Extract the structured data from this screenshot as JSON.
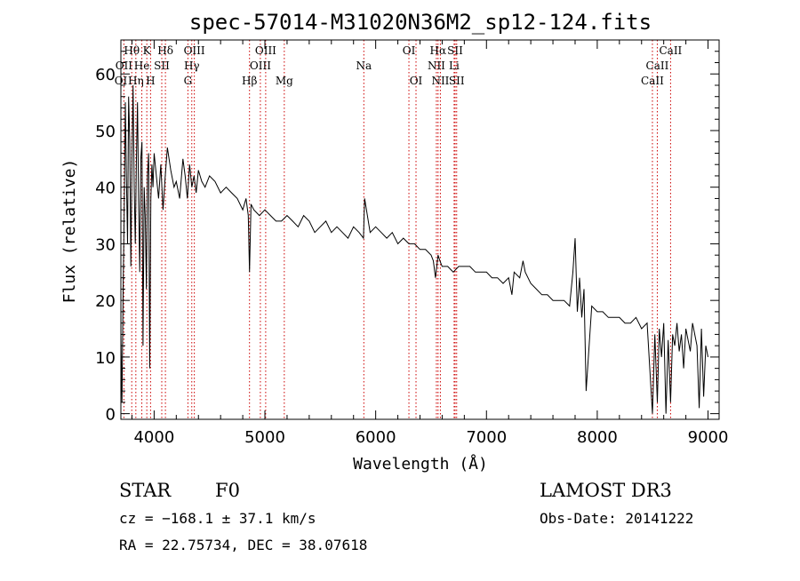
{
  "chart_data": {
    "type": "line",
    "title": "spec-57014-M31020N36M2_sp12-124.fits",
    "xlabel": "Wavelength (Å)",
    "ylabel": "Flux (relative)",
    "xlim": [
      3700,
      9100
    ],
    "ylim": [
      -1,
      66
    ],
    "x_ticks": [
      4000,
      5000,
      6000,
      7000,
      8000,
      9000
    ],
    "y_ticks": [
      0,
      10,
      20,
      30,
      40,
      50,
      60
    ],
    "series": [
      {
        "x": [
          3700,
          3710,
          3720,
          3730,
          3740,
          3750,
          3760,
          3770,
          3780,
          3790,
          3800,
          3810,
          3820,
          3830,
          3840,
          3850,
          3860,
          3870,
          3880,
          3890,
          3900,
          3910,
          3920,
          3930,
          3940,
          3950,
          3960,
          3970,
          3980,
          3990,
          4000,
          4020,
          4040,
          4060,
          4080,
          4100,
          4120,
          4150,
          4180,
          4200,
          4230,
          4260,
          4280,
          4300,
          4320,
          4340,
          4360,
          4380,
          4400,
          4430,
          4460,
          4500,
          4550,
          4600,
          4650,
          4700,
          4750,
          4800,
          4830,
          4850,
          4861,
          4875,
          4900,
          4950,
          5000,
          5050,
          5100,
          5150,
          5200,
          5250,
          5300,
          5350,
          5400,
          5450,
          5500,
          5550,
          5600,
          5650,
          5700,
          5750,
          5800,
          5850,
          5890,
          5900,
          5950,
          6000,
          6050,
          6100,
          6150,
          6200,
          6250,
          6300,
          6350,
          6400,
          6450,
          6500,
          6520,
          6540,
          6563,
          6580,
          6600,
          6650,
          6700,
          6750,
          6800,
          6850,
          6900,
          6950,
          7000,
          7050,
          7100,
          7150,
          7200,
          7230,
          7250,
          7300,
          7330,
          7350,
          7400,
          7450,
          7500,
          7550,
          7600,
          7650,
          7700,
          7750,
          7780,
          7800,
          7820,
          7840,
          7860,
          7880,
          7900,
          7950,
          8000,
          8050,
          8100,
          8150,
          8200,
          8250,
          8300,
          8350,
          8400,
          8450,
          8498,
          8520,
          8542,
          8560,
          8580,
          8600,
          8620,
          8640,
          8662,
          8680,
          8700,
          8720,
          8740,
          8760,
          8780,
          8800,
          8820,
          8840,
          8860,
          8880,
          8900,
          8920,
          8940,
          8960,
          8980,
          9000
        ],
        "y": [
          14,
          2,
          22,
          35,
          55,
          42,
          30,
          56,
          48,
          26,
          45,
          58,
          40,
          30,
          44,
          55,
          38,
          25,
          45,
          48,
          12,
          40,
          35,
          22,
          42,
          46,
          8,
          38,
          44,
          40,
          46,
          42,
          38,
          44,
          36,
          42,
          47,
          43,
          40,
          41,
          38,
          45,
          42,
          38,
          44,
          40,
          42,
          39,
          43,
          41,
          40,
          42,
          41,
          39,
          40,
          39,
          38,
          36,
          38,
          35,
          25,
          37,
          36,
          35,
          36,
          35,
          34,
          34,
          35,
          34,
          33,
          35,
          34,
          32,
          33,
          34,
          32,
          33,
          32,
          31,
          33,
          32,
          31,
          38,
          32,
          33,
          32,
          31,
          32,
          30,
          31,
          30,
          30,
          29,
          29,
          28,
          27,
          24,
          28,
          27,
          26,
          26,
          25,
          26,
          26,
          26,
          25,
          25,
          25,
          24,
          24,
          23,
          24,
          21,
          25,
          24,
          27,
          25,
          23,
          22,
          21,
          21,
          20,
          20,
          20,
          19,
          25,
          31,
          18,
          24,
          17,
          22,
          4,
          19,
          18,
          18,
          17,
          17,
          17,
          16,
          16,
          17,
          15,
          16,
          0,
          14,
          2,
          15,
          10,
          16,
          0,
          13,
          2,
          14,
          12,
          16,
          11,
          14,
          8,
          15,
          13,
          11,
          16,
          14,
          12,
          1,
          15,
          3,
          12,
          10
        ]
      }
    ],
    "lines": [
      {
        "label": "Hθ",
        "wl": 3798,
        "row": 0
      },
      {
        "label": "K",
        "wl": 3934,
        "row": 0
      },
      {
        "label": "Hδ",
        "wl": 4102,
        "row": 0
      },
      {
        "label": "OIII",
        "wl": 4363,
        "row": 0
      },
      {
        "label": "OIII",
        "wl": 5007,
        "row": 0
      },
      {
        "label": "OI",
        "wl": 6300,
        "row": 0
      },
      {
        "label": "Hα",
        "wl": 6563,
        "row": 0
      },
      {
        "label": "SII",
        "wl": 6717,
        "row": 0
      },
      {
        "label": "CaII",
        "wl": 8662,
        "row": 0
      },
      {
        "label": "OII",
        "wl": 3727,
        "row": 1
      },
      {
        "label": "He",
        "wl": 3889,
        "row": 1
      },
      {
        "label": "SII",
        "wl": 4069,
        "row": 1
      },
      {
        "label": "Hγ",
        "wl": 4340,
        "row": 1
      },
      {
        "label": "OIII",
        "wl": 4959,
        "row": 1
      },
      {
        "label": "Na",
        "wl": 5893,
        "row": 1
      },
      {
        "label": "NII",
        "wl": 6548,
        "row": 1
      },
      {
        "label": "Li",
        "wl": 6708,
        "row": 1
      },
      {
        "label": "CaII",
        "wl": 8542,
        "row": 1
      },
      {
        "label": "OI",
        "wl": 3700,
        "row": 2
      },
      {
        "label": "Hη",
        "wl": 3835,
        "row": 2
      },
      {
        "label": "H",
        "wl": 3968,
        "row": 2
      },
      {
        "label": "G",
        "wl": 4305,
        "row": 2
      },
      {
        "label": "Hβ",
        "wl": 4861,
        "row": 2
      },
      {
        "label": "Mg",
        "wl": 5175,
        "row": 2
      },
      {
        "label": "OI",
        "wl": 6364,
        "row": 2
      },
      {
        "label": "NII",
        "wl": 6584,
        "row": 2
      },
      {
        "label": "SII",
        "wl": 6731,
        "row": 2
      },
      {
        "label": "CaII",
        "wl": 8498,
        "row": 2
      }
    ],
    "grid": false,
    "line_color": "#000000",
    "marker_color": "#cc0000"
  },
  "info": {
    "class": "STAR",
    "subclass": "F0",
    "cz": "cz = −168.1 ± 37.1 km/s",
    "coords": "RA =  22.75734, DEC =  38.07618",
    "survey": "LAMOST DR3",
    "obsdate": "Obs-Date: 20141222"
  }
}
